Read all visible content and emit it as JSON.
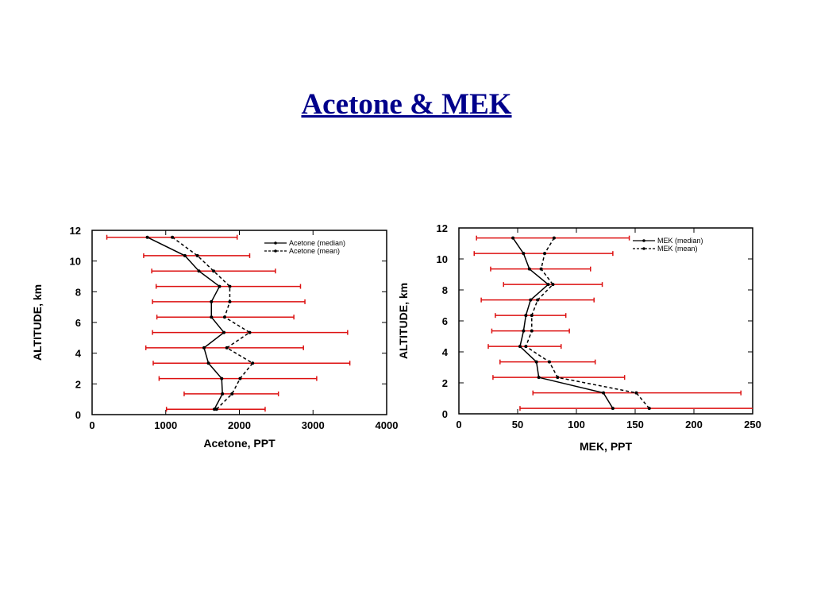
{
  "slide": {
    "title": "Acetone & MEK"
  },
  "chart_data": [
    {
      "type": "line",
      "xlabel": "Acetone, PPT",
      "ylabel": "ALTITUDE, km",
      "xlim": [
        0,
        4000
      ],
      "ylim": [
        0,
        12
      ],
      "xticks": [
        "0",
        "1000",
        "2000",
        "3000",
        "4000"
      ],
      "yticks": [
        "0",
        "2",
        "4",
        "6",
        "8",
        "10",
        "12"
      ],
      "grid": false,
      "legend": "top-right",
      "error_bar_color": "#dd1111",
      "altitudes": [
        0.35,
        1.35,
        2.35,
        3.35,
        4.35,
        5.35,
        6.35,
        7.35,
        8.35,
        9.35,
        10.35,
        11.55
      ],
      "error_ranges": [
        [
          1010,
          2350
        ],
        [
          1250,
          2530
        ],
        [
          910,
          3050
        ],
        [
          830,
          3500
        ],
        [
          730,
          2870
        ],
        [
          820,
          3470
        ],
        [
          880,
          2740
        ],
        [
          820,
          2890
        ],
        [
          870,
          2830
        ],
        [
          810,
          2490
        ],
        [
          700,
          2140
        ],
        [
          200,
          1970
        ]
      ],
      "series": [
        {
          "name": "Acetone (median)",
          "style": "solid",
          "values": [
            1660,
            1770,
            1760,
            1580,
            1520,
            1790,
            1620,
            1620,
            1730,
            1450,
            1260,
            750
          ]
        },
        {
          "name": "Acetone (mean)",
          "style": "dashed",
          "values": [
            1690,
            1900,
            2010,
            2180,
            1830,
            2140,
            1800,
            1870,
            1870,
            1650,
            1430,
            1090
          ]
        }
      ]
    },
    {
      "type": "line",
      "xlabel": "MEK, PPT",
      "ylabel": "ALTITUDE, km",
      "xlim": [
        0,
        250
      ],
      "ylim": [
        0,
        12
      ],
      "xticks": [
        "0",
        "50",
        "100",
        "150",
        "200",
        "250"
      ],
      "yticks": [
        "0",
        "2",
        "4",
        "6",
        "8",
        "10",
        "12"
      ],
      "grid": false,
      "legend": "top-right",
      "error_bar_color": "#dd1111",
      "altitudes": [
        0.35,
        1.35,
        2.35,
        3.35,
        4.35,
        5.35,
        6.35,
        7.35,
        8.35,
        9.35,
        10.35,
        11.35
      ],
      "error_ranges": [
        [
          52,
          251
        ],
        [
          63,
          240
        ],
        [
          29,
          141
        ],
        [
          35,
          116
        ],
        [
          25,
          87
        ],
        [
          28,
          94
        ],
        [
          31,
          91
        ],
        [
          19,
          115
        ],
        [
          38,
          122
        ],
        [
          27,
          112
        ],
        [
          13,
          131
        ],
        [
          15,
          145
        ]
      ],
      "series": [
        {
          "name": "MEK (median)",
          "style": "solid",
          "values": [
            131,
            123,
            68,
            66,
            52,
            55,
            57,
            61,
            76,
            60,
            55,
            46
          ]
        },
        {
          "name": "MEK (mean)",
          "style": "dashed",
          "values": [
            162,
            151,
            84,
            77,
            57,
            62,
            62,
            67,
            80,
            70,
            73,
            81
          ]
        }
      ]
    }
  ]
}
